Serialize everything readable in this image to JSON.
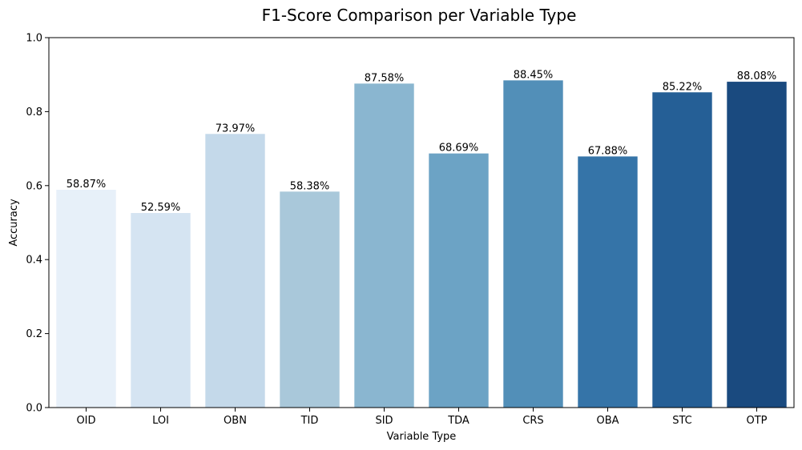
{
  "chart_data": {
    "type": "bar",
    "title": "F1-Score Comparison per Variable Type",
    "xlabel": "Variable Type",
    "ylabel": "Accuracy",
    "ylim": [
      0,
      1.0
    ],
    "yticks": [
      "0.0",
      "0.2",
      "0.4",
      "0.6",
      "0.8",
      "1.0"
    ],
    "categories": [
      "OID",
      "LOI",
      "OBN",
      "TID",
      "SID",
      "TDA",
      "CRS",
      "OBA",
      "STC",
      "OTP"
    ],
    "values": [
      0.5887,
      0.5259,
      0.7397,
      0.5838,
      0.8758,
      0.6869,
      0.8845,
      0.6788,
      0.8522,
      0.8808
    ],
    "value_labels": [
      "58.87%",
      "52.59%",
      "73.97%",
      "58.38%",
      "87.58%",
      "68.69%",
      "88.45%",
      "67.88%",
      "85.22%",
      "88.08%"
    ],
    "colors": [
      "#e7f0f9",
      "#d5e4f2",
      "#c4d9ea",
      "#a9c8da",
      "#8ab6d0",
      "#6ca3c5",
      "#528fb8",
      "#3574a8",
      "#255f96",
      "#1a4a7f"
    ],
    "grid": false,
    "legend": "none"
  }
}
